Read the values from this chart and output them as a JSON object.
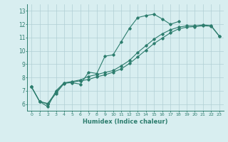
{
  "xlabel": "Humidex (Indice chaleur)",
  "color": "#2d7d6e",
  "bg_color": "#d8eef0",
  "grid_color": "#b0cfd4",
  "xlim": [
    -0.5,
    23.5
  ],
  "ylim": [
    5.5,
    13.5
  ],
  "yticks": [
    6,
    7,
    8,
    9,
    10,
    11,
    12,
    13
  ],
  "xticks": [
    0,
    1,
    2,
    3,
    4,
    5,
    6,
    7,
    8,
    9,
    10,
    11,
    12,
    13,
    14,
    15,
    16,
    17,
    18,
    19,
    20,
    21,
    22,
    23
  ],
  "x_values": [
    0,
    1,
    2,
    3,
    4,
    5,
    6,
    7,
    8,
    9,
    10,
    11,
    12,
    13,
    14,
    15,
    16,
    17,
    18,
    19,
    20,
    21,
    22,
    23
  ],
  "line1": [
    7.3,
    6.2,
    5.8,
    7.0,
    7.6,
    7.6,
    7.5,
    8.4,
    8.3,
    9.6,
    9.7,
    10.7,
    11.7,
    12.5,
    12.65,
    12.75,
    12.4,
    12.0,
    12.2,
    null,
    null,
    null,
    null,
    null
  ],
  "line2": [
    7.3,
    6.2,
    6.0,
    6.8,
    7.55,
    7.65,
    7.75,
    7.85,
    8.05,
    8.2,
    8.4,
    8.65,
    9.05,
    9.55,
    10.05,
    10.55,
    10.95,
    11.35,
    11.65,
    11.78,
    11.82,
    11.88,
    11.85,
    11.1
  ],
  "line3": [
    7.3,
    6.2,
    6.05,
    6.9,
    7.6,
    7.7,
    7.82,
    8.08,
    8.22,
    8.38,
    8.52,
    8.88,
    9.28,
    9.88,
    10.38,
    10.88,
    11.28,
    11.58,
    11.78,
    11.88,
    11.88,
    11.95,
    11.9,
    11.1
  ]
}
